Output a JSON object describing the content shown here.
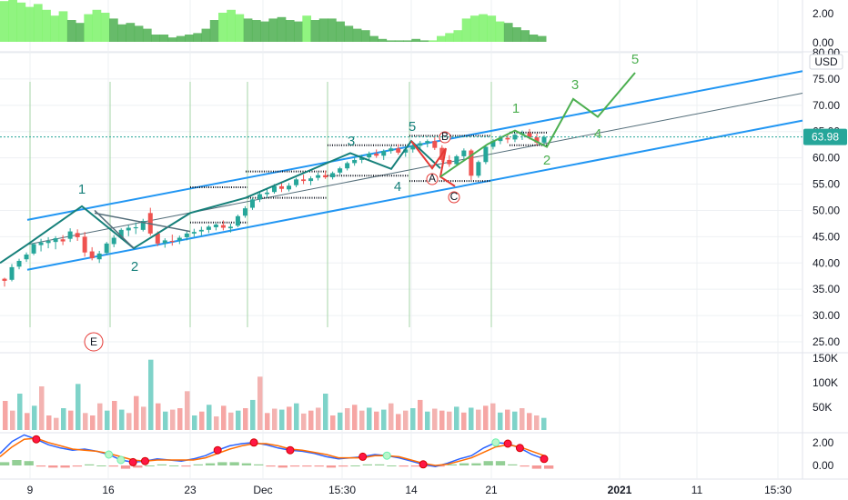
{
  "chart_data": {
    "type": "candlestick",
    "currency": "USD",
    "last_price": "63.98",
    "x_ticks": [
      "9",
      "16",
      "23",
      "Dec",
      "15:30",
      "14",
      "21",
      "2021",
      "11",
      "15:30"
    ],
    "price_axis": {
      "ylim": [
        21.5,
        80.0
      ],
      "ticks": [
        "80.00",
        "75.00",
        "70.00",
        "65.00",
        "60.00",
        "55.00",
        "50.00",
        "45.00",
        "40.00",
        "35.00",
        "30.00",
        "25.00"
      ]
    },
    "top_indicator": {
      "ticks": [
        "2.00",
        "0.00"
      ],
      "ylim": [
        0,
        3
      ]
    },
    "volume": {
      "ticks": [
        "150K",
        "100K",
        "50K"
      ],
      "ylim": [
        0,
        155000
      ]
    },
    "macd": {
      "ticks": [
        "2.00",
        "0.00"
      ],
      "ylim": [
        -1.2,
        3.2
      ]
    },
    "candles": [
      [
        37,
        37.2,
        35.5,
        36.6
      ],
      [
        36.8,
        39.8,
        36.5,
        39.2
      ],
      [
        39.3,
        40.8,
        38.8,
        40.4
      ],
      [
        40.7,
        42,
        40.2,
        41.6
      ],
      [
        41.8,
        43.8,
        41.5,
        43.6
      ],
      [
        43.4,
        44.6,
        42.2,
        43.9
      ],
      [
        43.8,
        44.9,
        42.8,
        44.2
      ],
      [
        44,
        45.1,
        42.6,
        44.7
      ],
      [
        44.5,
        45.3,
        43.4,
        44.1
      ],
      [
        44.6,
        46.6,
        44,
        46
      ],
      [
        45.7,
        46.4,
        44.2,
        44.9
      ],
      [
        45,
        45.9,
        41.2,
        42
      ],
      [
        42.2,
        43,
        40.5,
        40.9
      ],
      [
        40.7,
        42.3,
        40,
        41.8
      ],
      [
        41.9,
        44,
        41.5,
        43.7
      ],
      [
        43.6,
        45.3,
        43,
        44.8
      ],
      [
        44.8,
        46.6,
        44.5,
        46.3
      ],
      [
        46.2,
        47.2,
        45.1,
        46.7
      ],
      [
        46.6,
        47.7,
        45.5,
        46.8
      ],
      [
        46.3,
        48.4,
        46,
        48
      ],
      [
        49.5,
        50.5,
        45.2,
        45.6
      ],
      [
        45.6,
        46,
        43.2,
        43.7
      ],
      [
        43.8,
        44.7,
        42.9,
        44.3
      ],
      [
        44.2,
        45.4,
        43.3,
        44.1
      ],
      [
        44.3,
        45.2,
        43.6,
        44.8
      ],
      [
        44.9,
        46,
        44.3,
        45.6
      ],
      [
        45.6,
        46.5,
        45,
        45.9
      ],
      [
        46,
        46.9,
        45.2,
        46.3
      ],
      [
        46.3,
        47.2,
        45.7,
        46.9
      ],
      [
        46.8,
        47.6,
        46.2,
        47.3
      ],
      [
        47.2,
        48.1,
        46.2,
        46.7
      ],
      [
        46.6,
        47.5,
        45.8,
        46.9
      ],
      [
        47.1,
        49.2,
        46.8,
        48.9
      ],
      [
        49,
        50.8,
        48.6,
        50.4
      ],
      [
        50.5,
        52.4,
        50.1,
        52.1
      ],
      [
        52.1,
        53.6,
        51.6,
        53.1
      ],
      [
        53.1,
        54.3,
        52.4,
        53.4
      ],
      [
        53.5,
        55,
        53.2,
        54.6
      ],
      [
        54.6,
        55.4,
        53.5,
        54.1
      ],
      [
        54,
        55.2,
        53.6,
        54.7
      ],
      [
        54.8,
        56.2,
        54.4,
        55.9
      ],
      [
        55.9,
        56.8,
        55,
        55.6
      ],
      [
        55.6,
        56.5,
        54.8,
        56.1
      ],
      [
        56.2,
        57.2,
        55.7,
        56.7
      ],
      [
        56.7,
        57.6,
        56,
        56.3
      ],
      [
        56.3,
        57.4,
        55.9,
        57.1
      ],
      [
        57.2,
        58.3,
        56.8,
        58
      ],
      [
        58,
        59.3,
        57.6,
        59
      ],
      [
        59,
        60.1,
        58.5,
        59.6
      ],
      [
        59.6,
        60.6,
        59,
        60.1
      ],
      [
        60.1,
        61.2,
        59.6,
        60.8
      ],
      [
        60.8,
        61.6,
        60,
        60.4
      ],
      [
        60.4,
        61.6,
        59.6,
        61.3
      ],
      [
        61.3,
        62.2,
        60.8,
        61.8
      ],
      [
        61.8,
        62.6,
        60.6,
        61
      ],
      [
        61,
        62,
        60.2,
        61.6
      ],
      [
        61.6,
        62.6,
        61,
        62.3
      ],
      [
        62.3,
        63.2,
        61.5,
        62.8
      ],
      [
        62.8,
        63.5,
        62,
        63.2
      ],
      [
        63.2,
        64,
        61.5,
        61.9
      ],
      [
        61.9,
        62.4,
        59.2,
        59.6
      ],
      [
        59.6,
        60.5,
        58.3,
        58.8
      ],
      [
        58.8,
        60.6,
        58.4,
        60.3
      ],
      [
        60.3,
        61.8,
        59.6,
        61.4
      ],
      [
        61.4,
        61.7,
        55.8,
        56.6
      ],
      [
        56.6,
        59.5,
        56.2,
        59.2
      ],
      [
        59.2,
        62.5,
        58.8,
        62.1
      ],
      [
        62.1,
        63.6,
        61.6,
        63.2
      ],
      [
        63.2,
        64.3,
        62.6,
        63.8
      ],
      [
        63.8,
        64.6,
        62.8,
        63.5
      ],
      [
        63.5,
        64.8,
        63,
        64.4
      ],
      [
        64.4,
        65.2,
        63.4,
        64.7
      ],
      [
        64.7,
        65.5,
        63.5,
        63.9
      ],
      [
        63.9,
        64.6,
        62.4,
        62.9
      ],
      [
        62.9,
        64.3,
        62.5,
        63.98
      ]
    ],
    "volume_values": [
      60,
      40,
      75,
      35,
      50,
      90,
      30,
      25,
      45,
      40,
      95,
      35,
      30,
      55,
      40,
      60,
      42,
      35,
      70,
      48,
      145,
      55,
      38,
      42,
      45,
      80,
      30,
      38,
      52,
      28,
      50,
      36,
      40,
      45,
      62,
      110,
      35,
      44,
      42,
      48,
      55,
      34,
      40,
      46,
      75,
      30,
      36,
      45,
      52,
      40,
      46,
      38,
      42,
      55,
      33,
      40,
      45,
      62,
      38,
      44,
      40,
      38,
      48,
      36,
      46,
      42,
      50,
      55,
      36,
      42,
      38,
      45,
      35,
      30,
      25
    ],
    "top_indicator_values": [
      2.8,
      2.9,
      2.7,
      2.4,
      2.6,
      2.2,
      1.8,
      2.1,
      1.5,
      1.3,
      1.9,
      2.2,
      2.0,
      1.6,
      1.2,
      1.3,
      1.1,
      0.9,
      0.5,
      0.5,
      0.3,
      0.4,
      0.5,
      0.6,
      0.9,
      1.5,
      2.0,
      2.2,
      1.9,
      1.6,
      1.5,
      1.4,
      1.6,
      1.7,
      1.5,
      1.4,
      1.8,
      1.5,
      1.6,
      1.6,
      1.4,
      1.1,
      0.9,
      0.8,
      0.4,
      0.2,
      0.1,
      0.1,
      0.1,
      0.2,
      0.1,
      0.1,
      0.4,
      0.6,
      0.8,
      1.6,
      1.8,
      1.9,
      1.8,
      1.4,
      1.3,
      1.0,
      0.8,
      0.5,
      0.4
    ],
    "macd_line": [
      1.1,
      2.2,
      2.8,
      2.4,
      1.9,
      1.6,
      1.4,
      1.5,
      1.3,
      1.0,
      0.5,
      0.3,
      0.4,
      0.6,
      0.5,
      0.4,
      0.6,
      0.9,
      1.4,
      1.8,
      2.0,
      2.1,
      1.9,
      1.6,
      1.4,
      1.3,
      1.1,
      0.8,
      0.6,
      0.7,
      0.8,
      1.0,
      0.9,
      0.7,
      0.4,
      0.1,
      -0.1,
      0.2,
      0.6,
      0.9,
      1.6,
      2.1,
      2.0,
      1.6,
      1.0,
      0.6
    ],
    "signal_line": [
      0.8,
      1.7,
      2.4,
      2.5,
      2.1,
      1.8,
      1.5,
      1.4,
      1.3,
      1.1,
      0.8,
      0.5,
      0.4,
      0.5,
      0.5,
      0.5,
      0.5,
      0.7,
      1.1,
      1.5,
      1.8,
      2.0,
      2.0,
      1.8,
      1.5,
      1.4,
      1.2,
      1.0,
      0.7,
      0.7,
      0.7,
      0.9,
      0.9,
      0.8,
      0.5,
      0.2,
      0.0,
      0.1,
      0.4,
      0.7,
      1.2,
      1.7,
      1.9,
      1.7,
      1.3,
      0.9
    ],
    "elliott_labels": [
      "1",
      "2",
      "3",
      "4",
      "5",
      "A",
      "B",
      "C",
      "1",
      "2",
      "3",
      "4",
      "5",
      "E"
    ],
    "colors": {
      "up": "#26a69a",
      "down": "#ef5350",
      "channel": "#2196f3",
      "wave_primary": "#16807a",
      "wave_future": "#4caf50",
      "corrective": "#e53935",
      "grid": "#eef0f3",
      "price_badge": "#26a69a",
      "indicator_green": "#4caf50",
      "indicator_light": "#7cf26a",
      "macd_blue": "#2962ff",
      "macd_orange": "#ff6d00"
    }
  }
}
